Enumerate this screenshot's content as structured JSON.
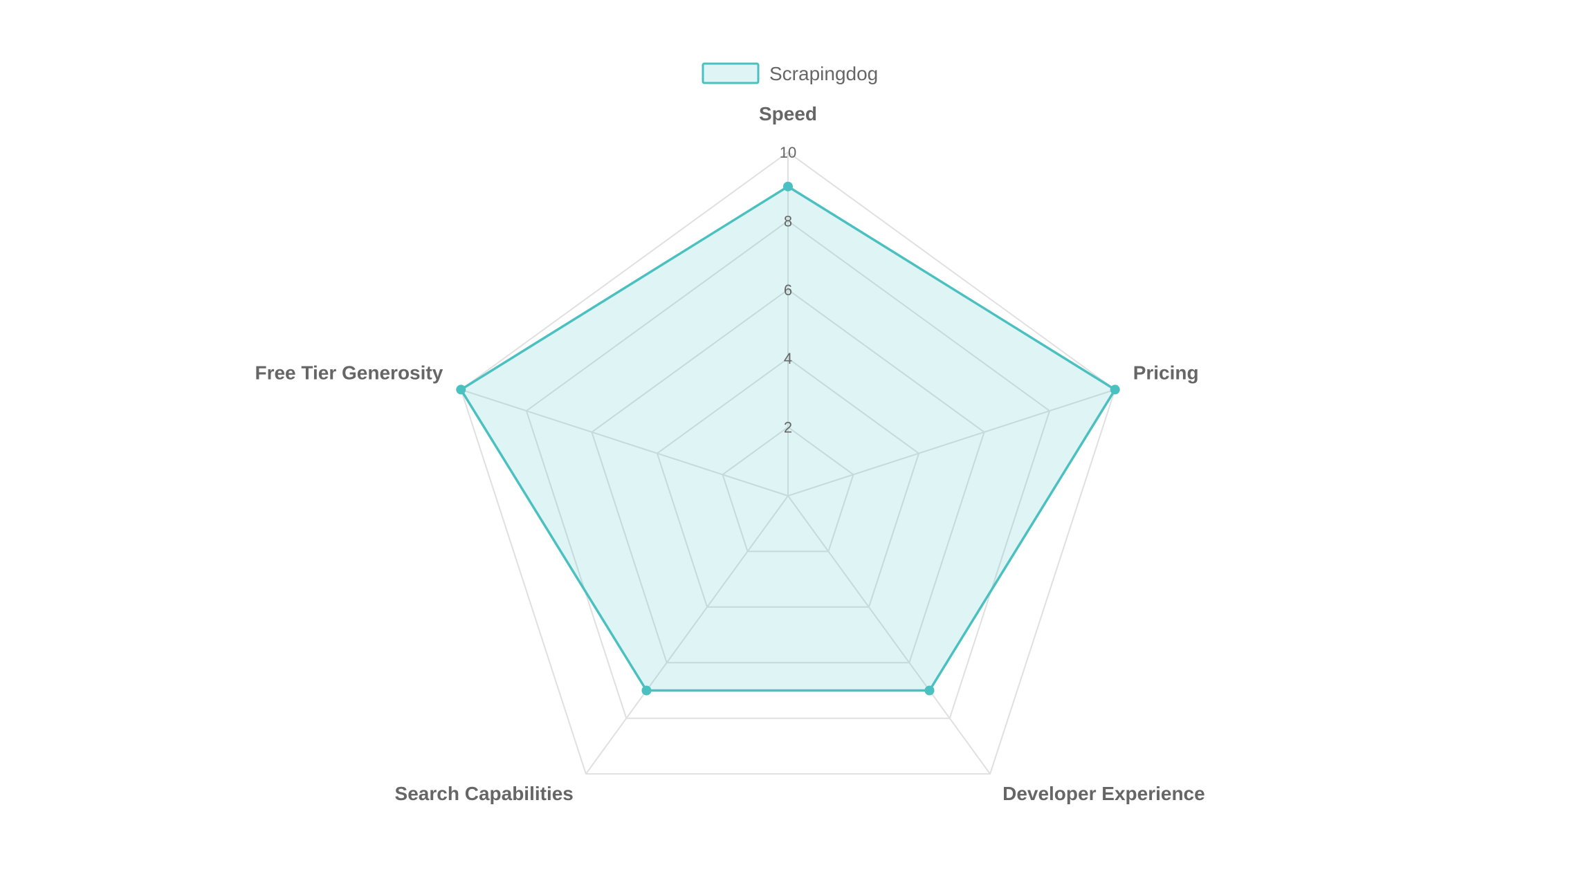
{
  "chart_data": {
    "type": "radar",
    "title": "",
    "axes": [
      "Speed",
      "Pricing",
      "Developer Experience",
      "Search Capabilities",
      "Free Tier Generosity"
    ],
    "rlim": [
      0,
      10
    ],
    "ticks": [
      "2",
      "4",
      "6",
      "8",
      "10"
    ],
    "tick_values": [
      2,
      4,
      6,
      8,
      10
    ],
    "grid": true,
    "legend_position": "top-center",
    "series": [
      {
        "name": "Scrapingdog",
        "values": [
          9,
          10,
          7,
          7,
          10
        ],
        "color": "#4bc0c0",
        "fill": "rgba(75,192,192,0.18)"
      }
    ],
    "grid_color": "#e0e0e0",
    "text_color": "#666666"
  }
}
